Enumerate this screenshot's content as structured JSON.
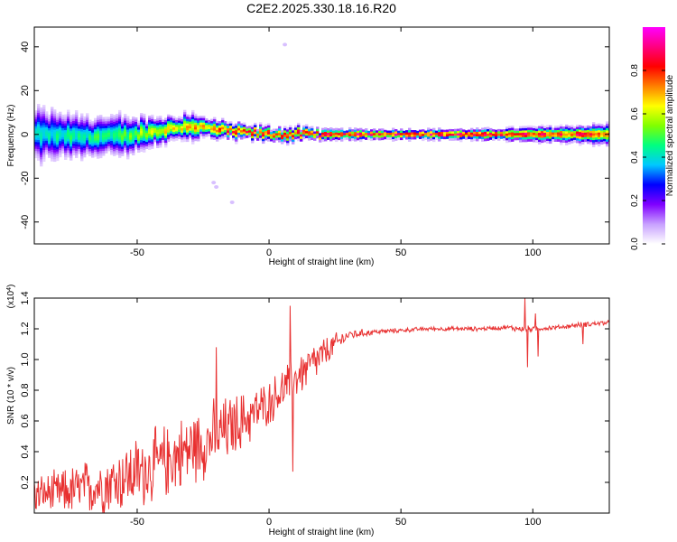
{
  "title": "C2E2.2025.330.18.16.R20",
  "chart_data": [
    {
      "type": "heatmap",
      "name": "spectrogram",
      "xlabel": "Height of straight line (km)",
      "ylabel": "Frequency (Hz)",
      "xlim": [
        -89,
        129
      ],
      "ylim": [
        -50,
        49
      ],
      "xticks": [
        -50,
        0,
        50,
        100
      ],
      "yticks": [
        -40,
        -20,
        0,
        20,
        40
      ],
      "xtick_labels": [
        "-50",
        "0",
        "50",
        "100"
      ],
      "ytick_labels": [
        "-40",
        "-20",
        "0",
        "20",
        "40"
      ],
      "colorbar": {
        "label": "Normalized spectral amplitude",
        "range": [
          0,
          1
        ],
        "ticks": [
          0.0,
          0.2,
          0.4,
          0.6,
          0.8
        ],
        "tick_labels": [
          "0.0",
          "0.2",
          "0.4",
          "0.6",
          "0.8"
        ],
        "colors": [
          "#ffffff",
          "#c8a0ff",
          "#8000ff",
          "#0000ff",
          "#00c8ff",
          "#00ff80",
          "#80ff00",
          "#ffff00",
          "#ff8000",
          "#ff0000",
          "#ff0080",
          "#ff00ff"
        ]
      },
      "ridge": {
        "x": [
          -88,
          -75,
          -60,
          -50,
          -40,
          -30,
          -25,
          -20,
          -10,
          0,
          5,
          10,
          20,
          40,
          60,
          80,
          100,
          129
        ],
        "center_hz": [
          0,
          -1,
          -1,
          0,
          2,
          4,
          3,
          2,
          1,
          0,
          0,
          0,
          0,
          0,
          0,
          0,
          0,
          0
        ],
        "spread_hz": [
          8,
          7,
          6,
          5,
          4,
          4,
          3,
          3,
          2,
          2,
          2,
          2,
          1.5,
          1.5,
          1.5,
          1.5,
          2,
          3
        ],
        "peak_amplitude": [
          0.45,
          0.5,
          0.55,
          0.6,
          0.7,
          0.75,
          0.8,
          0.85,
          0.9,
          0.92,
          0.95,
          0.95,
          0.97,
          0.98,
          0.98,
          0.98,
          0.97,
          0.9
        ]
      },
      "outliers": [
        {
          "x": -21,
          "y": -22
        },
        {
          "x": -20,
          "y": -24
        },
        {
          "x": -14,
          "y": -31
        },
        {
          "x": 6,
          "y": 41
        }
      ]
    },
    {
      "type": "line",
      "name": "snr",
      "xlabel": "Height of straight line (km)",
      "ylabel": "SNR (10 * v/v)",
      "yscale_label": "(x10",
      "yscale_exp": "4",
      "yscale_close": ")",
      "xlim": [
        -89,
        129
      ],
      "ylim": [
        0,
        1.4
      ],
      "xticks": [
        -50,
        0,
        50,
        100
      ],
      "yticks": [
        0.2,
        0.4,
        0.6,
        0.8,
        1.0,
        1.2,
        1.4
      ],
      "xtick_labels": [
        "-50",
        "0",
        "50",
        "100"
      ],
      "ytick_labels": [
        "0.2",
        "0.4",
        "0.6",
        "0.8",
        "1.0",
        "1.2",
        "1.4"
      ],
      "color": "#e83030",
      "trend": {
        "x": [
          -89,
          -80,
          -70,
          -60,
          -50,
          -40,
          -30,
          -20,
          -15,
          -10,
          -5,
          0,
          5,
          10,
          15,
          20,
          25,
          30,
          40,
          50,
          60,
          70,
          80,
          90,
          95,
          100,
          110,
          120,
          129
        ],
        "mean": [
          0.12,
          0.13,
          0.16,
          0.2,
          0.26,
          0.33,
          0.42,
          0.5,
          0.55,
          0.6,
          0.66,
          0.72,
          0.8,
          0.88,
          0.95,
          1.02,
          1.1,
          1.16,
          1.18,
          1.19,
          1.2,
          1.2,
          1.2,
          1.21,
          1.2,
          1.2,
          1.21,
          1.23,
          1.24
        ],
        "noise": [
          0.1,
          0.12,
          0.15,
          0.17,
          0.2,
          0.2,
          0.2,
          0.2,
          0.18,
          0.16,
          0.14,
          0.12,
          0.12,
          0.12,
          0.12,
          0.1,
          0.06,
          0.03,
          0.015,
          0.012,
          0.012,
          0.012,
          0.012,
          0.012,
          0.02,
          0.015,
          0.012,
          0.015,
          0.015
        ]
      },
      "spikes": [
        {
          "x": -20,
          "y": 1.08
        },
        {
          "x": 8,
          "y": 1.35
        },
        {
          "x": 9,
          "y": 0.27
        },
        {
          "x": 97,
          "y": 1.4
        },
        {
          "x": 98,
          "y": 0.95
        },
        {
          "x": 101,
          "y": 1.3
        },
        {
          "x": 102,
          "y": 1.02
        },
        {
          "x": 119,
          "y": 1.1
        }
      ]
    }
  ]
}
